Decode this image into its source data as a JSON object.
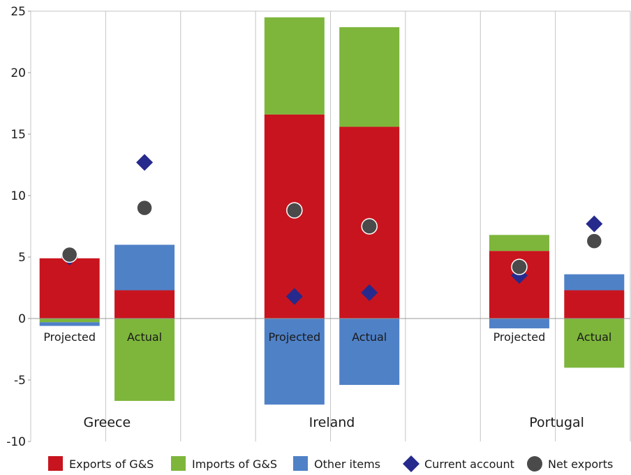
{
  "chart_data": {
    "type": "bar",
    "stacked": true,
    "ylim": [
      -10,
      25
    ],
    "yticks": [
      25,
      20,
      15,
      10,
      5,
      0,
      -5,
      -10
    ],
    "grid": "vertical",
    "legend_position": "bottom",
    "groups": [
      "Greece",
      "Ireland",
      "Portugal"
    ],
    "categories": [
      "Projected",
      "Actual",
      "Projected",
      "Actual",
      "Projected",
      "Actual"
    ],
    "category_group": [
      0,
      0,
      1,
      1,
      2,
      2
    ],
    "series": [
      {
        "name": "Exports of G&S",
        "kind": "bar",
        "color": "#c8141e",
        "values": [
          4.9,
          2.3,
          16.6,
          15.6,
          5.5,
          2.3
        ]
      },
      {
        "name": "Imports of G&S",
        "kind": "bar",
        "color": "#7db63b",
        "values": [
          -0.3,
          -6.7,
          7.9,
          8.1,
          1.3,
          -4.0
        ]
      },
      {
        "name": "Other items",
        "kind": "bar",
        "color": "#4f81c7",
        "values": [
          -0.3,
          3.7,
          -7.0,
          -5.4,
          -0.8,
          1.3
        ]
      },
      {
        "name": "Current account",
        "kind": "diamond",
        "color": "#262a8c",
        "values": [
          5.0,
          12.7,
          1.8,
          2.1,
          3.5,
          7.7
        ]
      },
      {
        "name": "Net exports",
        "kind": "circle",
        "color": "#4a4a4a",
        "values": [
          5.2,
          9.0,
          8.8,
          7.5,
          4.2,
          6.3
        ]
      }
    ]
  }
}
